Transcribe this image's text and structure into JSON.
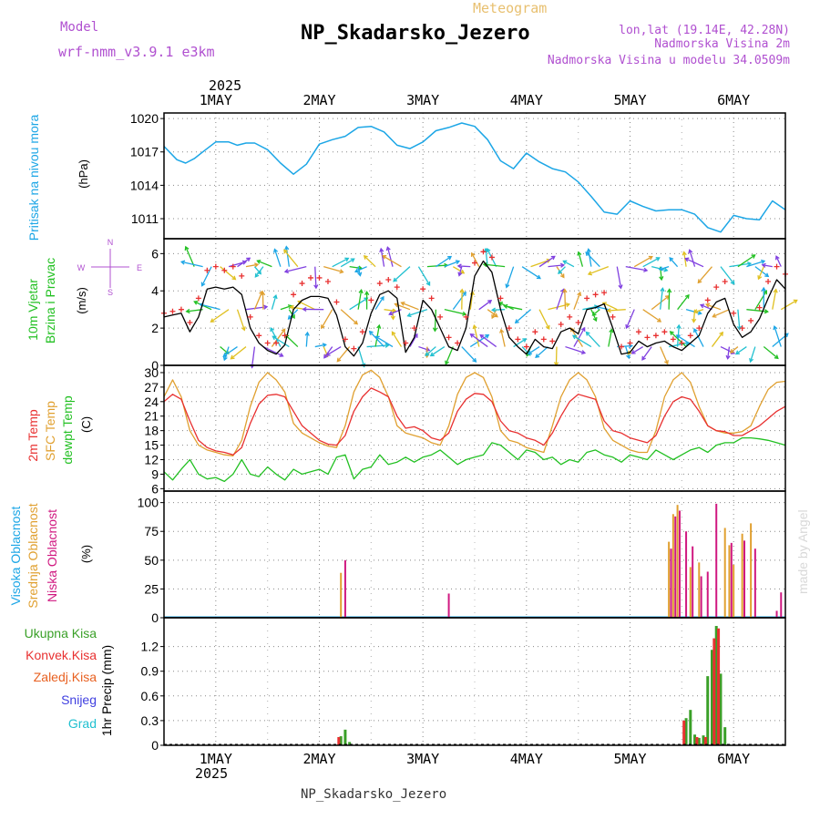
{
  "header": {
    "model_label": "Model",
    "model_name": "wrf-nmm_v3.9.1  e3km",
    "meteogram_label": "Meteogram",
    "station": "NP_Skadarsko_Jezero",
    "lonlat": "lon,lat (19.14E, 42.28N)",
    "elevation": "Nadmorska Visina 2m",
    "model_elevation": "Nadmorska Visina u modelu 34.0509m",
    "footer_station": "NP_Skadarsko_Jezero",
    "watermark": "made by Angel"
  },
  "colors": {
    "pressure": "#1ca6e6",
    "wind_speed": "#000000",
    "gust": "#e83030",
    "temp2m": "#e83030",
    "sfc_temp": "#e0a030",
    "dewpt": "#22c022",
    "cloud_high": "#1ca6e6",
    "cloud_mid": "#e0a030",
    "cloud_low": "#d01880",
    "rain_total": "#3aa028",
    "rain_conv": "#e83030",
    "snow": "#4040e0",
    "hail": "#20c0d0",
    "title_purple": "#b050d0"
  },
  "time_axis": {
    "year": "2025",
    "days": [
      "1MAY",
      "2MAY",
      "3MAY",
      "4MAY",
      "5MAY",
      "6MAY"
    ],
    "start_hour": -12,
    "end_hour": 132
  },
  "chart_data": [
    {
      "type": "line",
      "id": "pressure",
      "ylabel": "Pritisak na nivou mora",
      "units": "(hPa)",
      "ylim": [
        1009.2,
        1020.5
      ],
      "yticks": [
        "1011",
        "1014",
        "1017",
        "1020"
      ],
      "series": [
        {
          "name": "Pritisak na nivou mora",
          "x": [
            -12,
            -9,
            -7,
            -5,
            -3,
            0,
            3,
            5,
            7,
            9,
            12,
            15,
            18,
            21,
            24,
            27,
            30,
            33,
            36,
            39,
            42,
            45,
            48,
            51,
            54,
            57,
            60,
            63,
            66,
            69,
            72,
            75,
            78,
            81,
            84,
            87,
            90,
            93,
            96,
            99,
            102,
            105,
            108,
            111,
            114,
            117,
            120,
            123,
            126,
            129,
            132
          ],
          "y": [
            1017.5,
            1016.3,
            1016.0,
            1016.4,
            1017.0,
            1017.9,
            1017.9,
            1017.6,
            1017.8,
            1017.8,
            1017.2,
            1016.0,
            1015.0,
            1015.9,
            1017.7,
            1018.1,
            1018.4,
            1019.2,
            1019.3,
            1018.8,
            1017.6,
            1017.3,
            1017.9,
            1018.9,
            1019.2,
            1019.6,
            1019.3,
            1018.1,
            1016.2,
            1015.5,
            1016.9,
            1016.1,
            1015.5,
            1015.2,
            1014.3,
            1013.0,
            1011.6,
            1011.4,
            1012.6,
            1012.1,
            1011.7,
            1011.8,
            1011.8,
            1011.4,
            1010.2,
            1009.8,
            1011.3,
            1011.0,
            1010.9,
            1012.6,
            1011.8
          ]
        }
      ]
    },
    {
      "type": "line",
      "id": "wind",
      "ylabel": "10m Vjetar Brzina i Pravac",
      "units": "(m/s)",
      "compass": [
        "N",
        "W",
        "E",
        "S"
      ],
      "ylim": [
        0,
        6.8
      ],
      "yticks": [
        "0",
        "2",
        "4",
        "6"
      ],
      "series": [
        {
          "name": "Brzina vjetra",
          "x": [
            -12,
            -10,
            -8,
            -6,
            -4,
            -2,
            0,
            2,
            4,
            6,
            8,
            10,
            12,
            14,
            16,
            18,
            20,
            22,
            24,
            26,
            28,
            30,
            32,
            34,
            36,
            38,
            40,
            42,
            44,
            46,
            48,
            50,
            52,
            54,
            56,
            58,
            60,
            62,
            64,
            66,
            68,
            70,
            72,
            74,
            76,
            78,
            80,
            82,
            84,
            86,
            88,
            90,
            92,
            94,
            96,
            98,
            100,
            102,
            104,
            106,
            108,
            110,
            112,
            114,
            116,
            118,
            120,
            122,
            124,
            126,
            128,
            130,
            132
          ],
          "y": [
            2.6,
            2.7,
            2.8,
            1.8,
            2.6,
            4.1,
            4.2,
            4.1,
            4.2,
            3.8,
            2.0,
            1.2,
            0.8,
            0.6,
            1.1,
            3.0,
            3.5,
            3.7,
            3.7,
            3.6,
            2.7,
            1.0,
            0.5,
            1.2,
            2.8,
            3.8,
            4.0,
            3.6,
            0.7,
            1.5,
            3.5,
            3.0,
            2.0,
            1.0,
            0.8,
            2.0,
            4.8,
            5.6,
            5.0,
            3.0,
            1.5,
            1.0,
            0.6,
            1.4,
            1.0,
            0.9,
            1.8,
            2.0,
            1.7,
            3.0,
            3.1,
            3.3,
            2.0,
            0.6,
            0.7,
            1.3,
            1.0,
            1.2,
            1.3,
            1.0,
            0.8,
            1.2,
            1.6,
            2.8,
            3.4,
            3.6,
            2.2,
            1.5,
            1.8,
            2.5,
            3.6,
            4.6,
            4.1
          ]
        },
        {
          "name": "Udari vjetra",
          "x": [
            -12,
            -10,
            -8,
            -6,
            -4,
            -2,
            0,
            2,
            4,
            6,
            8,
            10,
            12,
            14,
            16,
            18,
            20,
            22,
            24,
            26,
            28,
            30,
            32,
            34,
            36,
            38,
            40,
            42,
            44,
            46,
            48,
            50,
            52,
            54,
            56,
            58,
            60,
            62,
            64,
            66,
            68,
            70,
            72,
            74,
            76,
            78,
            80,
            82,
            84,
            86,
            88,
            90,
            92,
            94,
            96,
            98,
            100,
            102,
            104,
            106,
            108,
            110,
            112,
            114,
            116,
            118,
            120,
            122,
            124,
            126,
            128,
            130,
            132
          ],
          "y": [
            2.8,
            2.9,
            3.0,
            2.3,
            3.6,
            5.1,
            5.3,
            5.1,
            5.3,
            4.8,
            2.6,
            1.6,
            1.2,
            1.2,
            1.6,
            3.8,
            4.4,
            4.7,
            4.7,
            4.5,
            3.4,
            1.4,
            0.9,
            1.8,
            3.5,
            4.4,
            4.6,
            4.2,
            1.2,
            2.0,
            4.1,
            3.6,
            2.6,
            1.5,
            1.2,
            2.6,
            5.5,
            6.1,
            5.8,
            3.6,
            2.0,
            1.4,
            1.0,
            1.8,
            1.4,
            1.3,
            2.2,
            2.6,
            2.3,
            3.6,
            3.8,
            3.9,
            2.6,
            1.0,
            1.2,
            1.8,
            1.5,
            1.6,
            1.8,
            1.4,
            1.2,
            1.6,
            2.0,
            3.5,
            4.2,
            4.5,
            2.8,
            2.0,
            2.4,
            3.1,
            4.5,
            5.3,
            4.9
          ]
        }
      ]
    },
    {
      "type": "line",
      "id": "temperature",
      "ylabels": [
        "2m Temp",
        "SFC Temp",
        "dewpt Temp"
      ],
      "units": "(C)",
      "ylim": [
        5.5,
        31.5
      ],
      "yticks": [
        "6",
        "9",
        "12",
        "15",
        "18",
        "21",
        "24",
        "27",
        "30"
      ],
      "series": [
        {
          "name": "2m Temp",
          "x": [
            -12,
            -10,
            -8,
            -6,
            -4,
            -2,
            0,
            2,
            4,
            6,
            8,
            10,
            12,
            14,
            16,
            18,
            20,
            22,
            24,
            26,
            28,
            30,
            32,
            34,
            36,
            38,
            40,
            42,
            44,
            46,
            48,
            50,
            52,
            54,
            56,
            58,
            60,
            62,
            64,
            66,
            68,
            70,
            72,
            74,
            76,
            78,
            80,
            82,
            84,
            86,
            88,
            90,
            92,
            94,
            96,
            98,
            100,
            102,
            104,
            106,
            108,
            110,
            112,
            114,
            116,
            118,
            120,
            122,
            124,
            126,
            128,
            130,
            132
          ],
          "y": [
            24.0,
            25.5,
            24.5,
            20.0,
            16.0,
            14.5,
            13.8,
            13.5,
            13.0,
            14.5,
            19.5,
            23.5,
            25.3,
            25.5,
            25.0,
            22.0,
            19.0,
            17.5,
            16.0,
            15.2,
            15.0,
            17.0,
            22.0,
            25.0,
            26.8,
            26.0,
            25.0,
            21.0,
            18.5,
            18.8,
            18.0,
            16.5,
            16.0,
            17.5,
            22.0,
            24.5,
            25.7,
            25.5,
            24.0,
            20.0,
            18.0,
            17.5,
            16.5,
            16.0,
            15.0,
            17.5,
            21.0,
            24.0,
            25.5,
            25.0,
            24.5,
            20.0,
            18.0,
            17.5,
            16.5,
            16.0,
            15.5,
            17.0,
            21.0,
            24.0,
            25.0,
            24.5,
            22.0,
            19.0,
            18.0,
            17.8,
            17.0,
            17.0,
            18.0,
            19.0,
            20.5,
            22.0,
            23.0
          ]
        },
        {
          "name": "SFC Temp",
          "x": [
            -12,
            -10,
            -8,
            -6,
            -4,
            -2,
            0,
            2,
            4,
            6,
            8,
            10,
            12,
            14,
            16,
            18,
            20,
            22,
            24,
            26,
            28,
            30,
            32,
            34,
            36,
            38,
            40,
            42,
            44,
            46,
            48,
            50,
            52,
            54,
            56,
            58,
            60,
            62,
            64,
            66,
            68,
            70,
            72,
            74,
            76,
            78,
            80,
            82,
            84,
            86,
            88,
            90,
            92,
            94,
            96,
            98,
            100,
            102,
            104,
            106,
            108,
            110,
            112,
            114,
            116,
            118,
            120,
            122,
            124,
            126,
            128,
            130,
            132
          ],
          "y": [
            25.0,
            28.5,
            25.0,
            18.0,
            15.0,
            14.0,
            13.5,
            13.0,
            12.8,
            16.0,
            23.0,
            28.0,
            30.0,
            28.5,
            26.0,
            19.5,
            17.5,
            16.5,
            15.5,
            14.8,
            14.5,
            19.0,
            26.0,
            29.5,
            30.5,
            29.0,
            25.0,
            19.0,
            17.5,
            17.0,
            16.5,
            15.5,
            15.0,
            19.0,
            25.5,
            29.0,
            30.0,
            29.0,
            25.0,
            18.0,
            16.0,
            15.5,
            14.5,
            14.0,
            13.5,
            19.0,
            25.0,
            28.5,
            30.0,
            28.5,
            25.0,
            18.5,
            16.0,
            15.0,
            14.0,
            13.5,
            13.5,
            18.0,
            25.0,
            28.5,
            30.0,
            28.0,
            23.0,
            19.0,
            18.0,
            17.5,
            17.5,
            17.8,
            19.0,
            23.0,
            26.5,
            28.0,
            28.2
          ]
        },
        {
          "name": "dewpt Temp",
          "x": [
            -12,
            -10,
            -8,
            -6,
            -4,
            -2,
            0,
            2,
            4,
            6,
            8,
            10,
            12,
            14,
            16,
            18,
            20,
            22,
            24,
            26,
            28,
            30,
            32,
            34,
            36,
            38,
            40,
            42,
            44,
            46,
            48,
            50,
            52,
            54,
            56,
            58,
            60,
            62,
            64,
            66,
            68,
            70,
            72,
            74,
            76,
            78,
            80,
            82,
            84,
            86,
            88,
            90,
            92,
            94,
            96,
            98,
            100,
            102,
            104,
            106,
            108,
            110,
            112,
            114,
            116,
            118,
            120,
            122,
            124,
            126,
            128,
            130,
            132
          ],
          "y": [
            9.5,
            7.8,
            10.0,
            12.0,
            9.0,
            8.0,
            8.3,
            7.5,
            9.0,
            12.0,
            9.0,
            8.5,
            10.5,
            9.0,
            7.8,
            10.0,
            9.0,
            9.5,
            10.0,
            9.0,
            12.5,
            13.0,
            8.0,
            10.0,
            10.5,
            13.0,
            11.0,
            11.5,
            12.5,
            11.5,
            12.5,
            13.0,
            14.0,
            12.5,
            11.0,
            12.0,
            12.5,
            13.0,
            15.5,
            15.0,
            13.5,
            12.0,
            14.0,
            13.5,
            12.0,
            12.5,
            11.0,
            12.0,
            11.5,
            13.5,
            14.0,
            13.0,
            12.5,
            11.5,
            13.0,
            12.5,
            12.0,
            14.0,
            13.0,
            12.0,
            13.0,
            14.0,
            14.5,
            13.5,
            15.0,
            15.5,
            15.5,
            16.5,
            16.5,
            16.3,
            16.0,
            15.5,
            15.0
          ]
        }
      ]
    },
    {
      "type": "bar",
      "id": "clouds",
      "ylabels": [
        "Visoka Oblacnost",
        "Srednja Oblacnost",
        "Niska Oblacnost"
      ],
      "units": "(%)",
      "ylim": [
        0,
        110
      ],
      "yticks": [
        "0",
        "25",
        "50",
        "75",
        "100"
      ],
      "series": [
        {
          "name": "Srednja Oblacnost",
          "x": [
            29,
            105,
            106,
            107,
            110,
            112,
            118,
            119,
            120,
            122,
            124
          ],
          "y": [
            39,
            66,
            90,
            98,
            44,
            48,
            78,
            63,
            46,
            73,
            82
          ]
        },
        {
          "name": "Niska Oblacnost",
          "x": [
            30,
            54,
            105.5,
            106.5,
            107.5,
            109,
            110.5,
            112.5,
            114,
            116,
            119.5,
            122.5,
            125,
            130,
            131
          ],
          "y": [
            50,
            21,
            60,
            88,
            93,
            75,
            62,
            36,
            40,
            99,
            65,
            67,
            60,
            6,
            22
          ]
        }
      ]
    },
    {
      "type": "bar",
      "id": "precip",
      "ylabel": "1hr Precip",
      "units": "(mm)",
      "ylabels": [
        "Ukupna Kisa",
        "Konvek.Kisa",
        "Zaledj.Kisa",
        "Snijeg",
        "Grad"
      ],
      "ylim": [
        0,
        1.55
      ],
      "yticks": [
        "0",
        "0.3",
        "0.6",
        "0.9",
        "1.2"
      ],
      "series": [
        {
          "name": "Ukupna Kisa",
          "x": [
            29,
            30,
            31,
            109,
            110,
            111,
            112,
            113,
            114,
            115,
            116,
            117,
            118,
            119
          ],
          "y": [
            0.11,
            0.19,
            0.04,
            0.33,
            0.43,
            0.13,
            0.09,
            0.12,
            0.84,
            1.16,
            1.45,
            0.87,
            0.22,
            0.01
          ]
        },
        {
          "name": "Konvek.Kisa",
          "x": [
            28.5,
            108.5,
            111.5,
            113.5,
            115.5,
            116.5
          ],
          "y": [
            0.1,
            0.3,
            0.1,
            0.1,
            1.3,
            1.42
          ]
        }
      ]
    }
  ]
}
